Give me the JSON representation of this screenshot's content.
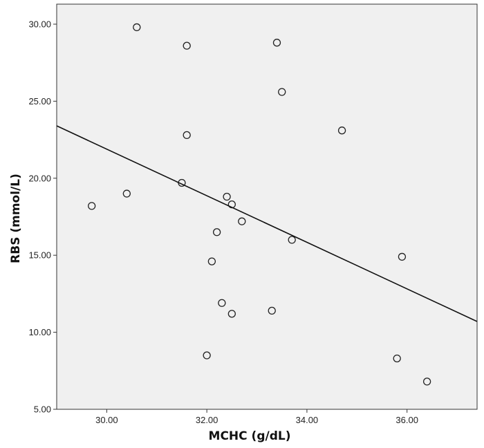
{
  "chart_data": {
    "type": "scatter",
    "xlabel": "MCHC (g/dL)",
    "ylabel": "RBS (mmol/L)",
    "xlim": [
      29.0,
      37.4
    ],
    "ylim": [
      5.0,
      31.3
    ],
    "x_ticks": [
      {
        "value": 30,
        "label": "30.00"
      },
      {
        "value": 32,
        "label": "32.00"
      },
      {
        "value": 34,
        "label": "34.00"
      },
      {
        "value": 36,
        "label": "36.00"
      }
    ],
    "y_ticks": [
      {
        "value": 5,
        "label": "5.00"
      },
      {
        "value": 10,
        "label": "10.00"
      },
      {
        "value": 15,
        "label": "15.00"
      },
      {
        "value": 20,
        "label": "20.00"
      },
      {
        "value": 25,
        "label": "25.00"
      },
      {
        "value": 30,
        "label": "30.00"
      }
    ],
    "points": [
      {
        "x": 29.7,
        "y": 18.2
      },
      {
        "x": 30.4,
        "y": 19.0
      },
      {
        "x": 30.6,
        "y": 29.8
      },
      {
        "x": 31.5,
        "y": 19.7
      },
      {
        "x": 31.6,
        "y": 28.6
      },
      {
        "x": 31.6,
        "y": 22.8
      },
      {
        "x": 32.0,
        "y": 8.5
      },
      {
        "x": 32.1,
        "y": 14.6
      },
      {
        "x": 32.2,
        "y": 16.5
      },
      {
        "x": 32.3,
        "y": 11.9
      },
      {
        "x": 32.4,
        "y": 18.8
      },
      {
        "x": 32.5,
        "y": 18.3
      },
      {
        "x": 32.5,
        "y": 11.2
      },
      {
        "x": 32.7,
        "y": 17.2
      },
      {
        "x": 33.3,
        "y": 11.4
      },
      {
        "x": 33.4,
        "y": 28.8
      },
      {
        "x": 33.5,
        "y": 25.6
      },
      {
        "x": 33.7,
        "y": 16.0
      },
      {
        "x": 34.7,
        "y": 23.1
      },
      {
        "x": 35.8,
        "y": 8.3
      },
      {
        "x": 35.9,
        "y": 14.9
      },
      {
        "x": 36.4,
        "y": 6.8
      }
    ],
    "fit_line": {
      "x1": 29.0,
      "y1": 23.4,
      "x2": 37.4,
      "y2": 10.7
    },
    "grid": false,
    "legend": "none",
    "colors": {
      "plot_background": "#f0f0f0",
      "marker_edge": "#222222",
      "fit_line": "#111111",
      "axis": "#333333"
    }
  }
}
